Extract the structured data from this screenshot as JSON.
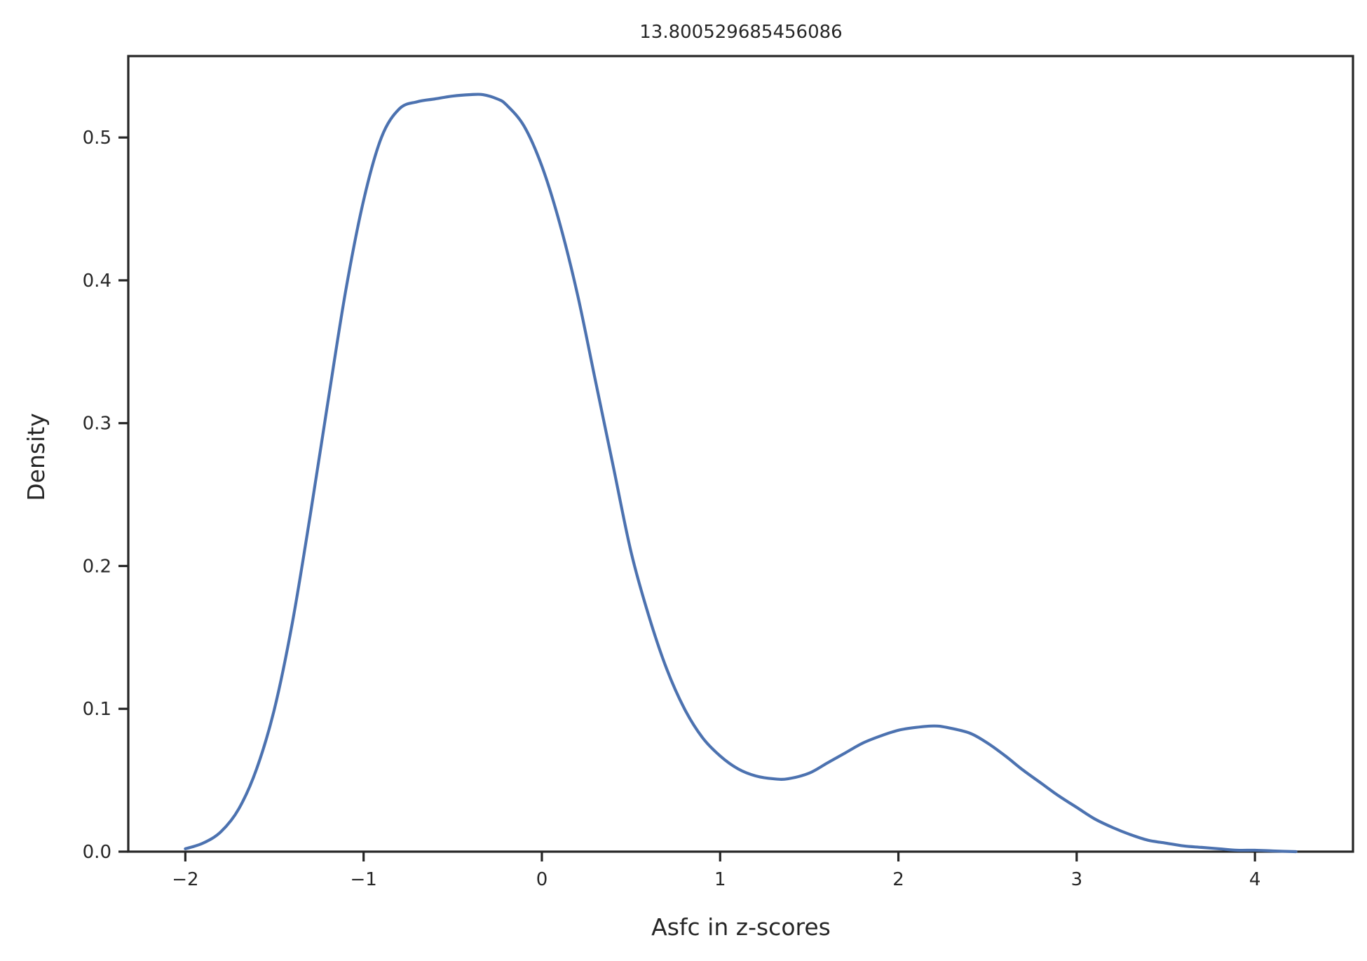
{
  "chart_data": {
    "type": "line",
    "kind": "kde",
    "title": "13.800529685456086",
    "xlabel": "Asfc in z-scores",
    "ylabel": "Density",
    "xlim": [
      -2.32,
      4.55
    ],
    "ylim": [
      0.0,
      0.557
    ],
    "xticks": [
      -2,
      -1,
      0,
      1,
      2,
      3,
      4
    ],
    "xtick_labels": [
      "−2",
      "−1",
      "0",
      "1",
      "2",
      "3",
      "4"
    ],
    "yticks": [
      0.0,
      0.1,
      0.2,
      0.3,
      0.4,
      0.5
    ],
    "ytick_labels": [
      "0.0",
      "0.1",
      "0.2",
      "0.3",
      "0.4",
      "0.5"
    ],
    "grid": false,
    "series": [
      {
        "color": "#4c72b0",
        "x": [
          -2.0,
          -1.9,
          -1.8,
          -1.7,
          -1.6,
          -1.5,
          -1.4,
          -1.3,
          -1.2,
          -1.1,
          -1.0,
          -0.9,
          -0.8,
          -0.7,
          -0.6,
          -0.5,
          -0.4,
          -0.33,
          -0.25,
          -0.2,
          -0.1,
          0.0,
          0.1,
          0.2,
          0.3,
          0.4,
          0.5,
          0.6,
          0.7,
          0.8,
          0.9,
          1.0,
          1.1,
          1.2,
          1.3,
          1.38,
          1.5,
          1.6,
          1.7,
          1.8,
          1.9,
          2.0,
          2.1,
          2.2,
          2.27,
          2.4,
          2.5,
          2.6,
          2.7,
          2.8,
          2.9,
          3.0,
          3.1,
          3.2,
          3.3,
          3.4,
          3.5,
          3.6,
          3.7,
          3.8,
          3.9,
          4.0,
          4.1,
          4.23
        ],
        "y": [
          0.002,
          0.006,
          0.014,
          0.03,
          0.058,
          0.1,
          0.16,
          0.235,
          0.315,
          0.393,
          0.456,
          0.5,
          0.52,
          0.525,
          0.527,
          0.529,
          0.53,
          0.53,
          0.527,
          0.523,
          0.508,
          0.48,
          0.44,
          0.39,
          0.33,
          0.27,
          0.21,
          0.165,
          0.128,
          0.1,
          0.08,
          0.067,
          0.058,
          0.053,
          0.051,
          0.051,
          0.055,
          0.062,
          0.069,
          0.076,
          0.081,
          0.085,
          0.087,
          0.088,
          0.087,
          0.083,
          0.076,
          0.067,
          0.057,
          0.048,
          0.039,
          0.031,
          0.023,
          0.017,
          0.012,
          0.008,
          0.006,
          0.004,
          0.003,
          0.002,
          0.001,
          0.001,
          0.0005,
          0.0
        ]
      }
    ]
  }
}
